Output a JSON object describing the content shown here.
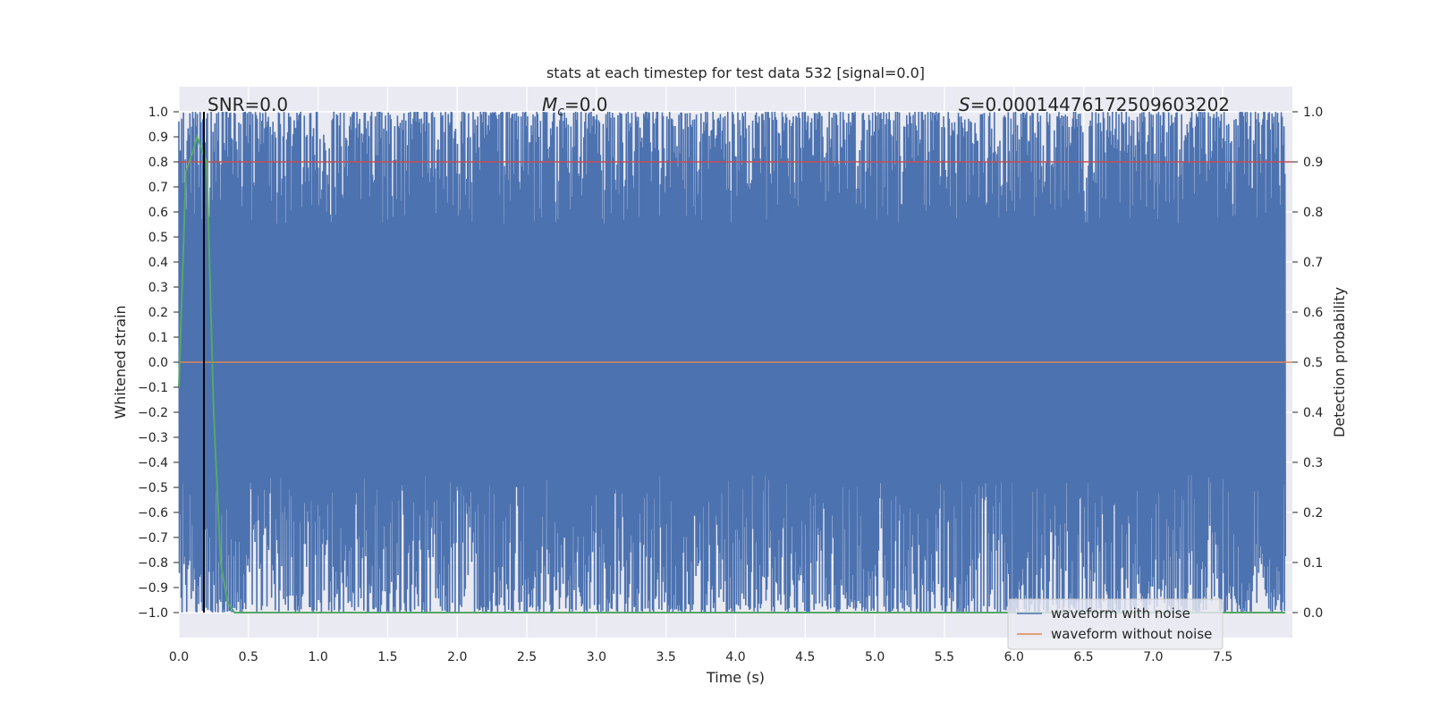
{
  "chart_data": {
    "type": "line",
    "title": "stats at each timestep for test data 532 [signal=0.0]",
    "xlabel": "Time (s)",
    "ylabel": "Whitened strain",
    "y2label": "Detection probability",
    "xlim": [
      0.0,
      8.0
    ],
    "ylim": [
      -1.1,
      1.1
    ],
    "y2lim": [
      -0.05,
      1.05
    ],
    "xticks": [
      "0.0",
      "0.5",
      "1.0",
      "1.5",
      "2.0",
      "2.5",
      "3.0",
      "3.5",
      "4.0",
      "4.5",
      "5.0",
      "5.5",
      "6.0",
      "6.5",
      "7.0",
      "7.5"
    ],
    "yticks": [
      "1.0",
      "0.9",
      "0.8",
      "0.7",
      "0.6",
      "0.5",
      "0.4",
      "0.3",
      "0.2",
      "0.1",
      "0.0",
      "−0.1",
      "−0.2",
      "−0.3",
      "−0.4",
      "−0.5",
      "−0.6",
      "−0.7",
      "−0.8",
      "−0.9",
      "−1.0"
    ],
    "y2ticks": [
      "1.0",
      "0.9",
      "0.8",
      "0.7",
      "0.6",
      "0.5",
      "0.4",
      "0.3",
      "0.2",
      "0.1",
      "0.0"
    ],
    "annotations": {
      "snr": "SNR=0.0",
      "mc_symbol": "M",
      "mc_subscript": "c",
      "mc_value": "=0.0",
      "s_symbol": "S",
      "s_value": "=0.00014476172509603202"
    },
    "vertical_marker_x": 0.18,
    "legend": {
      "placement": "lower-right",
      "entries": [
        "waveform with noise",
        "waveform without noise"
      ]
    },
    "grid": true,
    "series": [
      {
        "name": "waveform with noise",
        "axis": "left",
        "color": "#4c72b0",
        "description_shown": "whitened noisy strain oscillating rapidly between about -1.0 and 1.0 across 0-8 s"
      },
      {
        "name": "waveform without noise",
        "axis": "left",
        "color": "#dd8452",
        "values_constant": 0.0
      },
      {
        "axis": "left",
        "color": "#c44e52",
        "values_constant": 0.8
      },
      {
        "axis": "right",
        "color": "#55a868",
        "x": [
          0.0,
          0.05,
          0.1,
          0.13,
          0.17,
          0.2,
          0.25,
          0.3,
          0.35,
          0.4,
          1.0,
          2.0,
          3.0,
          4.0,
          5.0,
          6.0,
          7.0,
          7.95
        ],
        "values": [
          0.45,
          0.88,
          0.92,
          0.95,
          0.92,
          0.9,
          0.4,
          0.1,
          0.02,
          0.0,
          0.0,
          0.0,
          0.0,
          0.0,
          0.0,
          0.0,
          0.0,
          0.0
        ]
      }
    ]
  }
}
